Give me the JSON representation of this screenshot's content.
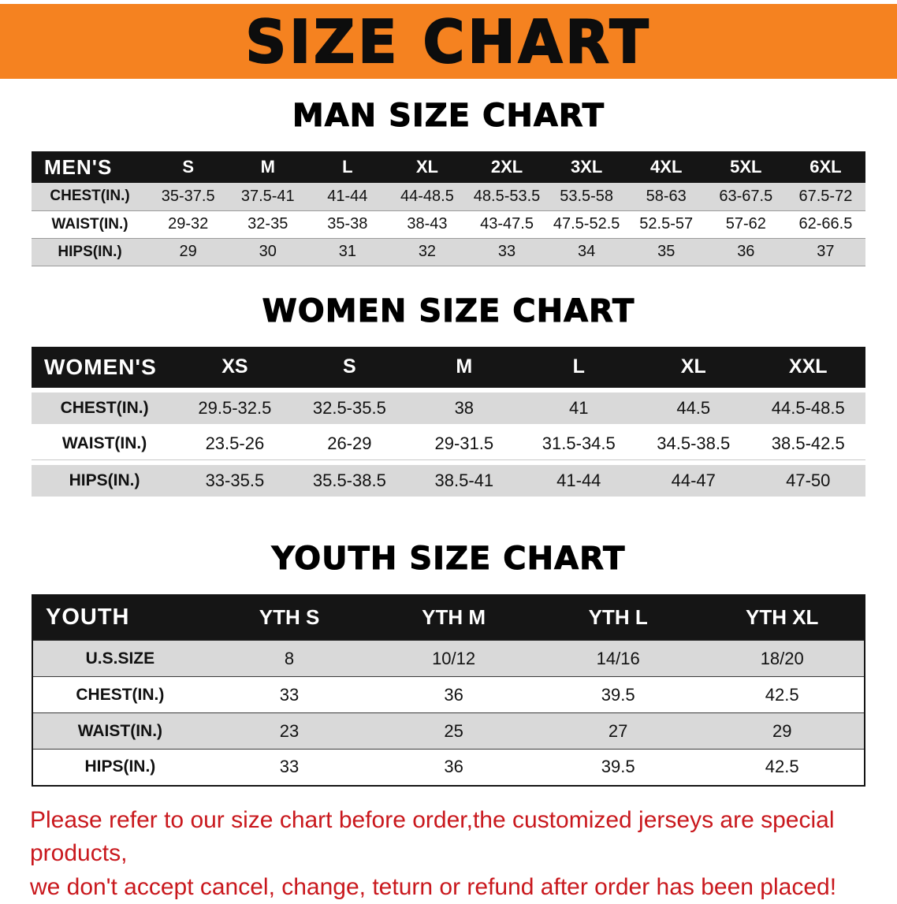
{
  "banner": {
    "title": "SIZE CHART"
  },
  "sections": [
    {
      "heading": "MAN SIZE CHART",
      "table": {
        "header": [
          "MEN'S",
          "S",
          "M",
          "L",
          "XL",
          "2XL",
          "3XL",
          "4XL",
          "5XL",
          "6XL"
        ],
        "rows": [
          [
            "CHEST(IN.)",
            "35-37.5",
            "37.5-41",
            "41-44",
            "44-48.5",
            "48.5-53.5",
            "53.5-58",
            "58-63",
            "63-67.5",
            "67.5-72"
          ],
          [
            "WAIST(IN.)",
            "29-32",
            "32-35",
            "35-38",
            "38-43",
            "43-47.5",
            "47.5-52.5",
            "52.5-57",
            "57-62",
            "62-66.5"
          ],
          [
            "HIPS(IN.)",
            "29",
            "30",
            "31",
            "32",
            "33",
            "34",
            "35",
            "36",
            "37"
          ]
        ]
      }
    },
    {
      "heading": "WOMEN SIZE CHART",
      "table": {
        "header": [
          "WOMEN'S",
          "XS",
          "S",
          "M",
          "L",
          "XL",
          "XXL"
        ],
        "rows": [
          [
            "CHEST(IN.)",
            "29.5-32.5",
            "32.5-35.5",
            "38",
            "41",
            "44.5",
            "44.5-48.5"
          ],
          [
            "WAIST(IN.)",
            "23.5-26",
            "26-29",
            "29-31.5",
            "31.5-34.5",
            "34.5-38.5",
            "38.5-42.5"
          ],
          [
            "HIPS(IN.)",
            "33-35.5",
            "35.5-38.5",
            "38.5-41",
            "41-44",
            "44-47",
            "47-50"
          ]
        ]
      }
    },
    {
      "heading": "YOUTH SIZE CHART",
      "table": {
        "header": [
          "YOUTH",
          "YTH S",
          "YTH M",
          "YTH L",
          "YTH XL"
        ],
        "rows": [
          [
            "U.S.SIZE",
            "8",
            "10/12",
            "14/16",
            "18/20"
          ],
          [
            "CHEST(IN.)",
            "33",
            "36",
            "39.5",
            "42.5"
          ],
          [
            "WAIST(IN.)",
            "23",
            "25",
            "27",
            "29"
          ],
          [
            "HIPS(IN.)",
            "33",
            "36",
            "39.5",
            "42.5"
          ]
        ]
      }
    }
  ],
  "disclaimer": {
    "line1": "Please refer to our size chart before order,the customized jerseys are special products,",
    "line2": "we don't accept cancel, change, teturn or refund after order has been placed!"
  },
  "colors": {
    "banner_bg": "#f58220",
    "table_header_bg": "#151515",
    "row_gray": "#d9d9d9",
    "disclaimer_red": "#c9181d"
  }
}
